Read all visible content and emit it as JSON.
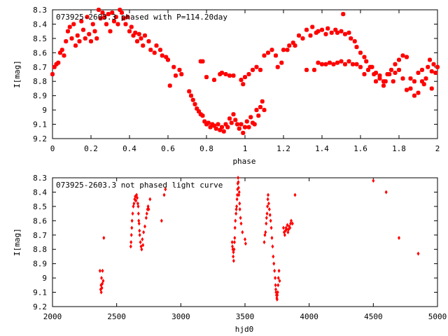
{
  "chart_data": [
    {
      "type": "scatter",
      "title": "073925-2603.3 phased with P=114.20day",
      "xlabel": "phase",
      "ylabel": "I[mag]",
      "xlim": [
        0,
        2
      ],
      "ylim": [
        8.3,
        9.2
      ],
      "y_inverted": true,
      "grid": false,
      "marker_color": "#ff0000",
      "marker": "filled-square-star",
      "xticks": [
        "0",
        "0.2",
        "0.4",
        "0.6",
        "0.8",
        "1",
        "1.2",
        "1.4",
        "1.6",
        "1.8",
        "2"
      ],
      "xtick_values": [
        0,
        0.2,
        0.4,
        0.6,
        0.8,
        1.0,
        1.2,
        1.4,
        1.6,
        1.8,
        2.0
      ],
      "yticks": [
        "8.3",
        "8.4",
        "8.5",
        "8.6",
        "8.7",
        "8.8",
        "8.9",
        "9",
        "9.1",
        "9.2"
      ],
      "ytick_values": [
        8.3,
        8.4,
        8.5,
        8.6,
        8.7,
        8.8,
        8.9,
        9.0,
        9.1,
        9.2
      ],
      "points": [
        [
          0.0,
          8.75
        ],
        [
          0.01,
          8.7
        ],
        [
          0.02,
          8.68
        ],
        [
          0.03,
          8.67
        ],
        [
          0.04,
          8.6
        ],
        [
          0.05,
          8.58
        ],
        [
          0.06,
          8.62
        ],
        [
          0.07,
          8.52
        ],
        [
          0.08,
          8.45
        ],
        [
          0.09,
          8.42
        ],
        [
          0.1,
          8.5
        ],
        [
          0.11,
          8.4
        ],
        [
          0.12,
          8.55
        ],
        [
          0.13,
          8.48
        ],
        [
          0.14,
          8.52
        ],
        [
          0.15,
          8.38
        ],
        [
          0.16,
          8.44
        ],
        [
          0.17,
          8.5
        ],
        [
          0.18,
          8.35
        ],
        [
          0.19,
          8.47
        ],
        [
          0.2,
          8.52
        ],
        [
          0.21,
          8.4
        ],
        [
          0.22,
          8.45
        ],
        [
          0.23,
          8.5
        ],
        [
          0.24,
          8.3
        ],
        [
          0.25,
          8.36
        ],
        [
          0.26,
          8.32
        ],
        [
          0.27,
          8.35
        ],
        [
          0.28,
          8.4
        ],
        [
          0.29,
          8.33
        ],
        [
          0.3,
          8.45
        ],
        [
          0.31,
          8.32
        ],
        [
          0.32,
          8.38
        ],
        [
          0.33,
          8.35
        ],
        [
          0.34,
          8.4
        ],
        [
          0.35,
          8.3
        ],
        [
          0.36,
          8.32
        ],
        [
          0.37,
          8.36
        ],
        [
          0.38,
          8.4
        ],
        [
          0.39,
          8.35
        ],
        [
          0.4,
          8.45
        ],
        [
          0.41,
          8.42
        ],
        [
          0.42,
          8.48
        ],
        [
          0.43,
          8.46
        ],
        [
          0.44,
          8.52
        ],
        [
          0.45,
          8.47
        ],
        [
          0.46,
          8.5
        ],
        [
          0.47,
          8.55
        ],
        [
          0.48,
          8.48
        ],
        [
          0.5,
          8.52
        ],
        [
          0.51,
          8.58
        ],
        [
          0.53,
          8.6
        ],
        [
          0.54,
          8.55
        ],
        [
          0.56,
          8.58
        ],
        [
          0.57,
          8.62
        ],
        [
          0.59,
          8.63
        ],
        [
          0.6,
          8.65
        ],
        [
          0.61,
          8.83
        ],
        [
          0.63,
          8.7
        ],
        [
          0.64,
          8.76
        ],
        [
          0.66,
          8.72
        ],
        [
          0.67,
          8.75
        ],
        [
          0.71,
          8.87
        ],
        [
          0.72,
          8.9
        ],
        [
          0.73,
          8.93
        ],
        [
          0.74,
          8.96
        ],
        [
          0.75,
          8.99
        ],
        [
          0.76,
          9.01
        ],
        [
          0.77,
          9.03
        ],
        [
          0.78,
          9.04
        ],
        [
          0.79,
          9.08
        ],
        [
          0.8,
          9.1
        ],
        [
          0.81,
          9.09
        ],
        [
          0.82,
          9.12
        ],
        [
          0.83,
          9.1
        ],
        [
          0.84,
          9.11
        ],
        [
          0.85,
          9.13
        ],
        [
          0.86,
          9.1
        ],
        [
          0.87,
          9.14
        ],
        [
          0.88,
          9.12
        ],
        [
          0.89,
          9.15
        ],
        [
          0.9,
          9.1
        ],
        [
          0.91,
          9.12
        ],
        [
          0.92,
          9.06
        ],
        [
          0.93,
          9.09
        ],
        [
          0.94,
          9.03
        ],
        [
          0.95,
          9.07
        ],
        [
          0.96,
          9.1
        ],
        [
          0.97,
          9.13
        ],
        [
          0.98,
          9.1
        ],
        [
          0.99,
          9.16
        ],
        [
          1.0,
          9.12
        ],
        [
          1.01,
          9.08
        ],
        [
          1.02,
          9.12
        ],
        [
          1.03,
          9.05
        ],
        [
          1.04,
          9.09
        ],
        [
          1.05,
          9.1
        ],
        [
          1.06,
          9.0
        ],
        [
          1.07,
          9.04
        ],
        [
          1.08,
          8.98
        ],
        [
          1.09,
          8.94
        ],
        [
          1.1,
          9.0
        ],
        [
          0.77,
          8.66
        ],
        [
          0.78,
          8.66
        ],
        [
          0.8,
          8.77
        ],
        [
          0.84,
          8.79
        ],
        [
          0.87,
          8.75
        ],
        [
          0.88,
          8.74
        ],
        [
          0.9,
          8.75
        ],
        [
          0.92,
          8.76
        ],
        [
          0.94,
          8.76
        ],
        [
          0.98,
          8.79
        ],
        [
          0.99,
          8.82
        ],
        [
          1.0,
          8.77
        ],
        [
          1.02,
          8.75
        ],
        [
          1.04,
          8.72
        ],
        [
          1.06,
          8.7
        ],
        [
          1.08,
          8.72
        ],
        [
          1.1,
          8.62
        ],
        [
          1.12,
          8.6
        ],
        [
          1.14,
          8.58
        ],
        [
          1.16,
          8.62
        ],
        [
          1.17,
          8.7
        ],
        [
          1.19,
          8.67
        ],
        [
          1.2,
          8.58
        ],
        [
          1.22,
          8.58
        ],
        [
          1.23,
          8.55
        ],
        [
          1.25,
          8.53
        ],
        [
          1.26,
          8.55
        ],
        [
          1.28,
          8.48
        ],
        [
          1.3,
          8.5
        ],
        [
          1.32,
          8.44
        ],
        [
          1.34,
          8.48
        ],
        [
          1.35,
          8.42
        ],
        [
          1.37,
          8.46
        ],
        [
          1.38,
          8.45
        ],
        [
          1.4,
          8.44
        ],
        [
          1.42,
          8.47
        ],
        [
          1.43,
          8.43
        ],
        [
          1.45,
          8.46
        ],
        [
          1.47,
          8.44
        ],
        [
          1.48,
          8.46
        ],
        [
          1.5,
          8.45
        ],
        [
          1.51,
          8.33
        ],
        [
          1.52,
          8.47
        ],
        [
          1.54,
          8.46
        ],
        [
          1.55,
          8.5
        ],
        [
          1.57,
          8.52
        ],
        [
          1.58,
          8.56
        ],
        [
          1.6,
          8.6
        ],
        [
          1.62,
          8.63
        ],
        [
          1.63,
          8.66
        ],
        [
          1.65,
          8.7
        ],
        [
          1.67,
          8.75
        ],
        [
          1.68,
          8.8
        ],
        [
          1.7,
          8.78
        ],
        [
          1.72,
          8.83
        ],
        [
          1.73,
          8.8
        ],
        [
          1.75,
          8.75
        ],
        [
          1.77,
          8.8
        ],
        [
          1.78,
          8.68
        ],
        [
          1.8,
          8.72
        ],
        [
          1.82,
          8.78
        ],
        [
          1.84,
          8.86
        ],
        [
          1.86,
          8.85
        ],
        [
          1.88,
          8.9
        ],
        [
          1.9,
          8.88
        ],
        [
          1.92,
          8.8
        ],
        [
          1.93,
          8.82
        ],
        [
          1.95,
          8.7
        ],
        [
          1.97,
          8.73
        ],
        [
          1.98,
          8.68
        ],
        [
          2.0,
          8.7
        ],
        [
          1.32,
          8.72
        ],
        [
          1.36,
          8.72
        ],
        [
          1.38,
          8.67
        ],
        [
          1.4,
          8.68
        ],
        [
          1.42,
          8.68
        ],
        [
          1.44,
          8.67
        ],
        [
          1.46,
          8.68
        ],
        [
          1.48,
          8.67
        ],
        [
          1.5,
          8.66
        ],
        [
          1.52,
          8.68
        ],
        [
          1.54,
          8.66
        ],
        [
          1.56,
          8.68
        ],
        [
          1.58,
          8.68
        ],
        [
          1.6,
          8.7
        ],
        [
          1.62,
          8.75
        ],
        [
          1.64,
          8.72
        ],
        [
          1.66,
          8.7
        ],
        [
          1.68,
          8.74
        ],
        [
          1.7,
          8.76
        ],
        [
          1.72,
          8.8
        ],
        [
          1.74,
          8.75
        ],
        [
          1.76,
          8.72
        ],
        [
          1.78,
          8.74
        ],
        [
          1.8,
          8.65
        ],
        [
          1.82,
          8.62
        ],
        [
          1.84,
          8.63
        ],
        [
          1.86,
          8.78
        ],
        [
          1.88,
          8.8
        ],
        [
          1.9,
          8.74
        ],
        [
          1.92,
          8.72
        ],
        [
          1.94,
          8.78
        ],
        [
          1.96,
          8.65
        ],
        [
          1.97,
          8.85
        ],
        [
          1.99,
          8.74
        ]
      ]
    },
    {
      "type": "scatter",
      "title": "073925-2603.3 not phased light curve",
      "xlabel": "hjd0",
      "ylabel": "I[mag]",
      "xlim": [
        2000,
        5000
      ],
      "ylim": [
        8.3,
        9.2
      ],
      "y_inverted": true,
      "grid": false,
      "marker_color": "#ff0000",
      "marker": "diamond",
      "xticks": [
        "2000",
        "2500",
        "3000",
        "3500",
        "4000",
        "4500",
        "5000"
      ],
      "xtick_values": [
        2000,
        2500,
        3000,
        3500,
        4000,
        4500,
        5000
      ],
      "yticks": [
        "8.3",
        "8.4",
        "8.5",
        "8.6",
        "8.7",
        "8.8",
        "8.9",
        "9",
        "9.1",
        "9.2"
      ],
      "ytick_values": [
        8.3,
        8.4,
        8.5,
        8.6,
        8.7,
        8.8,
        8.9,
        9.0,
        9.1,
        9.2
      ],
      "points": [
        [
          2370,
          8.95
        ],
        [
          2375,
          9.08
        ],
        [
          2378,
          9.05
        ],
        [
          2380,
          9.1
        ],
        [
          2382,
          9.0
        ],
        [
          2385,
          9.07
        ],
        [
          2388,
          9.04
        ],
        [
          2390,
          8.95
        ],
        [
          2395,
          9.02
        ],
        [
          2400,
          8.72
        ],
        [
          2610,
          8.78
        ],
        [
          2612,
          8.75
        ],
        [
          2615,
          8.7
        ],
        [
          2618,
          8.65
        ],
        [
          2620,
          8.6
        ],
        [
          2625,
          8.55
        ],
        [
          2630,
          8.5
        ],
        [
          2635,
          8.48
        ],
        [
          2640,
          8.45
        ],
        [
          2645,
          8.43
        ],
        [
          2650,
          8.46
        ],
        [
          2655,
          8.42
        ],
        [
          2660,
          8.44
        ],
        [
          2665,
          8.48
        ],
        [
          2668,
          8.5
        ],
        [
          2670,
          8.55
        ],
        [
          2672,
          8.6
        ],
        [
          2675,
          8.62
        ],
        [
          2678,
          8.67
        ],
        [
          2680,
          8.7
        ],
        [
          2685,
          8.75
        ],
        [
          2690,
          8.78
        ],
        [
          2695,
          8.8
        ],
        [
          2700,
          8.73
        ],
        [
          2705,
          8.77
        ],
        [
          2710,
          8.68
        ],
        [
          2720,
          8.64
        ],
        [
          2730,
          8.58
        ],
        [
          2735,
          8.55
        ],
        [
          2740,
          8.52
        ],
        [
          2745,
          8.5
        ],
        [
          2750,
          8.52
        ],
        [
          2760,
          8.45
        ],
        [
          2850,
          8.6
        ],
        [
          2870,
          8.42
        ],
        [
          2880,
          8.38
        ],
        [
          3400,
          8.75
        ],
        [
          3402,
          8.78
        ],
        [
          3405,
          8.8
        ],
        [
          3408,
          8.85
        ],
        [
          3410,
          8.82
        ],
        [
          3412,
          8.88
        ],
        [
          3415,
          8.8
        ],
        [
          3418,
          8.75
        ],
        [
          3420,
          8.72
        ],
        [
          3422,
          8.65
        ],
        [
          3425,
          8.6
        ],
        [
          3430,
          8.55
        ],
        [
          3432,
          8.52
        ],
        [
          3435,
          8.5
        ],
        [
          3438,
          8.45
        ],
        [
          3440,
          8.42
        ],
        [
          3442,
          8.38
        ],
        [
          3444,
          8.34
        ],
        [
          3446,
          8.3
        ],
        [
          3448,
          8.33
        ],
        [
          3450,
          8.37
        ],
        [
          3452,
          8.42
        ],
        [
          3455,
          8.4
        ],
        [
          3458,
          8.48
        ],
        [
          3460,
          8.52
        ],
        [
          3465,
          8.58
        ],
        [
          3470,
          8.62
        ],
        [
          3480,
          8.68
        ],
        [
          3500,
          8.73
        ],
        [
          3505,
          8.76
        ],
        [
          3650,
          8.75
        ],
        [
          3655,
          8.7
        ],
        [
          3660,
          8.68
        ],
        [
          3665,
          8.62
        ],
        [
          3668,
          8.58
        ],
        [
          3672,
          8.55
        ],
        [
          3675,
          8.5
        ],
        [
          3678,
          8.45
        ],
        [
          3680,
          8.42
        ],
        [
          3685,
          8.48
        ],
        [
          3690,
          8.52
        ],
        [
          3695,
          8.56
        ],
        [
          3700,
          8.6
        ],
        [
          3705,
          8.65
        ],
        [
          3710,
          8.72
        ],
        [
          3715,
          8.78
        ],
        [
          3720,
          8.85
        ],
        [
          3725,
          8.9
        ],
        [
          3730,
          8.95
        ],
        [
          3735,
          9.0
        ],
        [
          3738,
          9.05
        ],
        [
          3740,
          9.08
        ],
        [
          3742,
          9.1
        ],
        [
          3745,
          9.12
        ],
        [
          3748,
          9.14
        ],
        [
          3750,
          9.15
        ],
        [
          3752,
          9.12
        ],
        [
          3755,
          9.1
        ],
        [
          3758,
          9.05
        ],
        [
          3760,
          9.0
        ],
        [
          3765,
          8.95
        ],
        [
          3770,
          9.02
        ],
        [
          3800,
          8.65
        ],
        [
          3805,
          8.68
        ],
        [
          3810,
          8.7
        ],
        [
          3815,
          8.67
        ],
        [
          3820,
          8.65
        ],
        [
          3825,
          8.66
        ],
        [
          3830,
          8.63
        ],
        [
          3835,
          8.68
        ],
        [
          3840,
          8.66
        ],
        [
          3845,
          8.64
        ],
        [
          3850,
          8.65
        ],
        [
          3855,
          8.62
        ],
        [
          3860,
          8.6
        ],
        [
          3870,
          8.62
        ],
        [
          3890,
          8.42
        ],
        [
          4500,
          8.32
        ],
        [
          4600,
          8.4
        ],
        [
          4700,
          8.72
        ],
        [
          4850,
          8.83
        ]
      ]
    }
  ]
}
